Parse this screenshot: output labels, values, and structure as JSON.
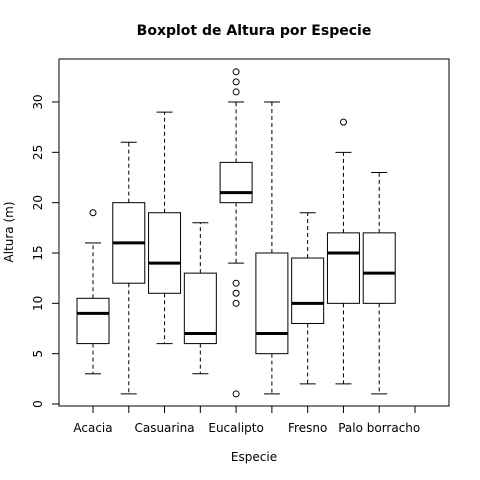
{
  "chart_data": {
    "type": "boxplot",
    "title": "Boxplot de Altura por Especie",
    "xlabel": "Especie",
    "ylabel": "Altura (m)",
    "ylim": [
      -0.3,
      34
    ],
    "yticks": [
      0,
      5,
      10,
      15,
      20,
      25,
      30
    ],
    "categories": [
      "Acacia",
      "",
      "Casuarina",
      "",
      "Eucalipto",
      "",
      "Fresno",
      "",
      "Palo borracho",
      ""
    ],
    "boxes": [
      {
        "whisker_low": 3,
        "q1": 6,
        "median": 9,
        "q3": 10.5,
        "whisker_high": 16,
        "outliers": [
          19
        ]
      },
      {
        "whisker_low": 1,
        "q1": 12,
        "median": 16,
        "q3": 20,
        "whisker_high": 26,
        "outliers": []
      },
      {
        "whisker_low": 6,
        "q1": 11,
        "median": 14,
        "q3": 19,
        "whisker_high": 29,
        "outliers": []
      },
      {
        "whisker_low": 3,
        "q1": 6,
        "median": 7,
        "q3": 13,
        "whisker_high": 18,
        "outliers": []
      },
      {
        "whisker_low": 14,
        "q1": 20,
        "median": 21,
        "q3": 24,
        "whisker_high": 30,
        "outliers": [
          1,
          10,
          11,
          12,
          31,
          32,
          33
        ]
      },
      {
        "whisker_low": 1,
        "q1": 5,
        "median": 7,
        "q3": 15,
        "whisker_high": 30,
        "outliers": []
      },
      {
        "whisker_low": 2,
        "q1": 8,
        "median": 10,
        "q3": 14.5,
        "whisker_high": 19,
        "outliers": []
      },
      {
        "whisker_low": 2,
        "q1": 10,
        "median": 15,
        "q3": 17,
        "whisker_high": 25,
        "outliers": [
          28
        ]
      },
      {
        "whisker_low": 1,
        "q1": 10,
        "median": 13,
        "q3": 17,
        "whisker_high": 23,
        "outliers": []
      },
      {
        "whisker_low": 0,
        "q1": 0,
        "median": 0,
        "q3": 0,
        "whisker_high": 0,
        "outliers": [],
        "hidden": true
      }
    ],
    "grid": false,
    "legend": "none"
  }
}
